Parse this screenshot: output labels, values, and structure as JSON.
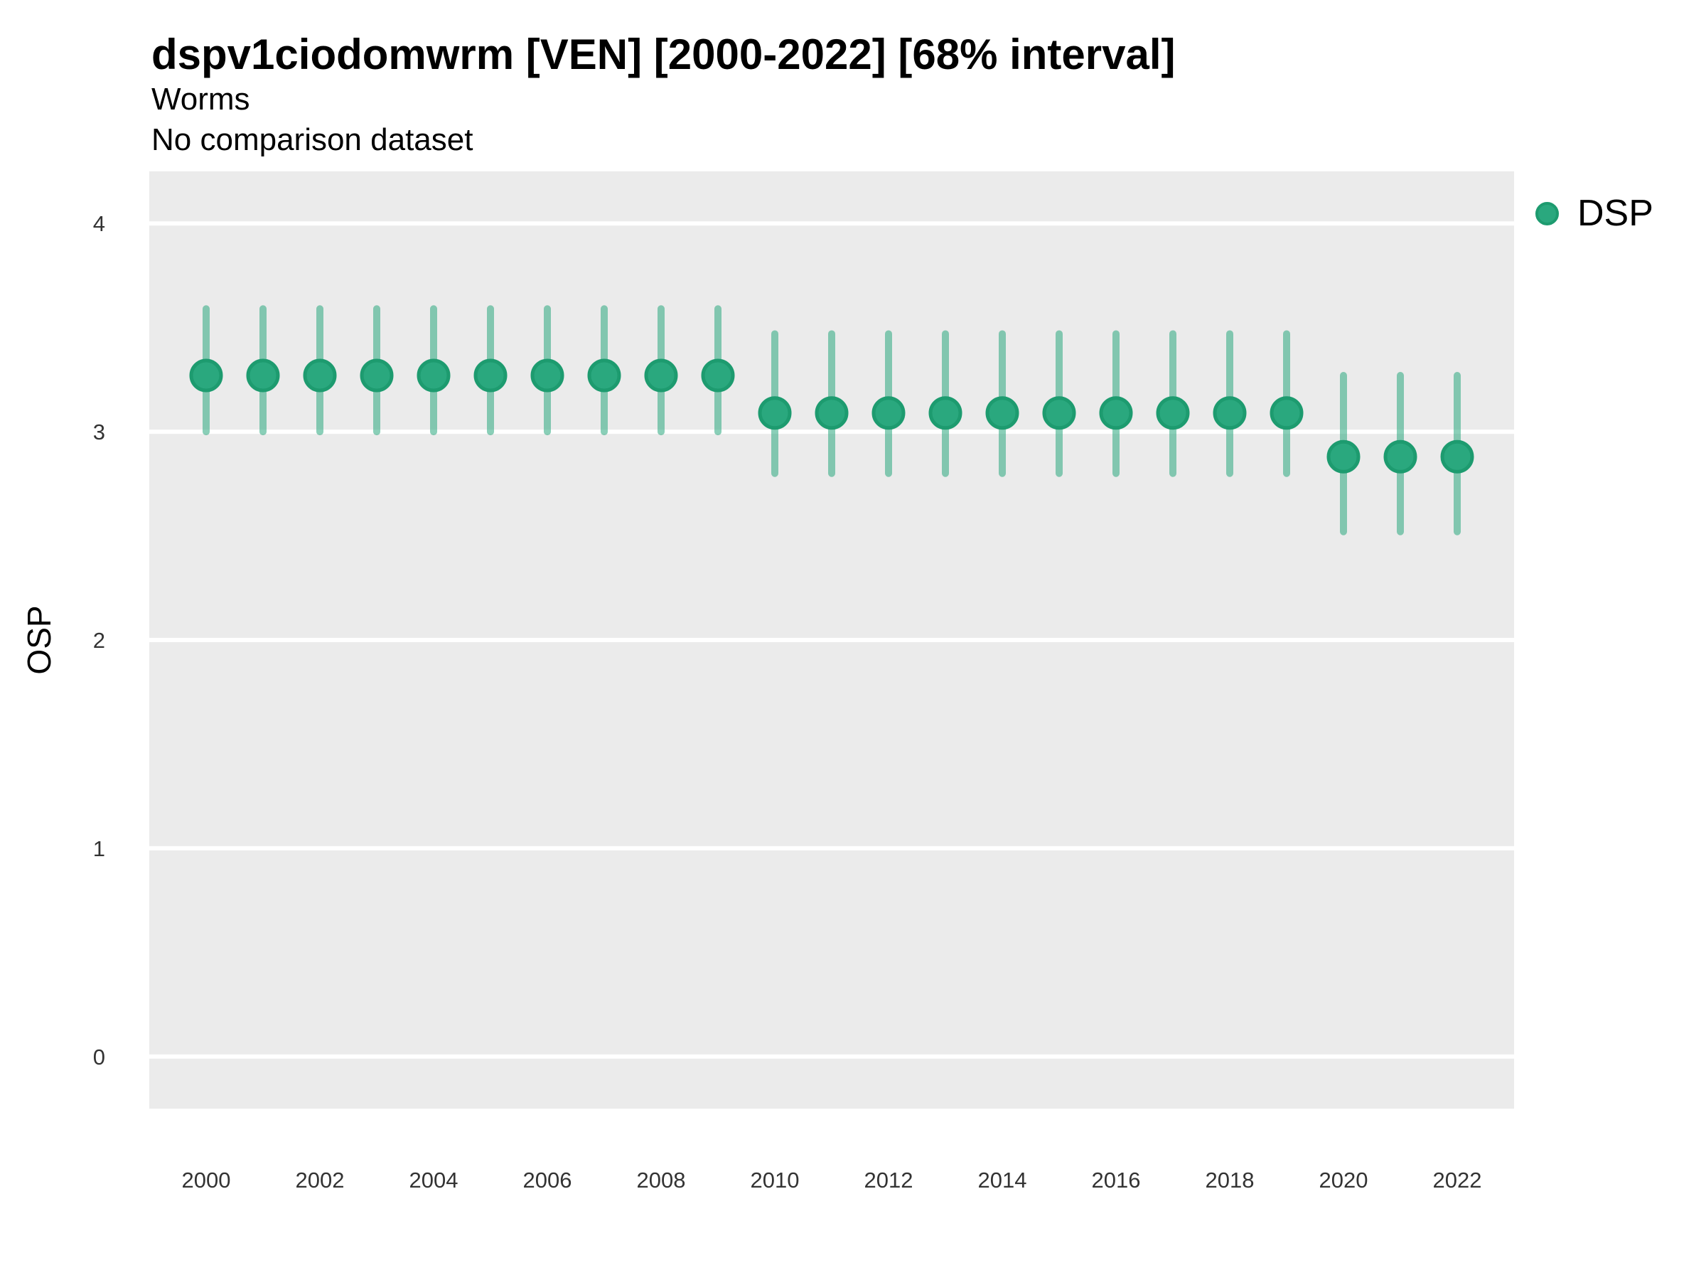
{
  "header": {
    "title": "dspv1ciodomwrm [VEN] [2000-2022] [68% interval]",
    "subtitle": "Worms",
    "comparison_note": "No comparison dataset"
  },
  "colors": {
    "point_fill": "#2AA87E",
    "point_stroke": "#1D9B6F",
    "interval_line": "#2AA87E",
    "interval_opacity": 0.55,
    "panel_background": "#EBEBEB",
    "gridline": "#FFFFFF",
    "axis_text": "#333333",
    "title_text": "#000000"
  },
  "chart_data": {
    "type": "scatter",
    "variant": "pointrange",
    "title": "dspv1ciodomwrm [VEN] [2000-2022] [68% interval]",
    "subtitle": "Worms",
    "note": "No comparison dataset",
    "xlabel": "",
    "ylabel": "OSP",
    "interval_level": "68%",
    "grid": "major-horizontal-only",
    "legend_position": "right",
    "xlim": [
      1999,
      2023
    ],
    "ylim": [
      -0.25,
      4.25
    ],
    "x_ticks": [
      2000,
      2002,
      2004,
      2006,
      2008,
      2010,
      2012,
      2014,
      2016,
      2018,
      2020,
      2022
    ],
    "y_ticks": [
      0,
      1,
      2,
      3,
      4
    ],
    "series": [
      {
        "name": "DSP",
        "x": [
          2000,
          2001,
          2002,
          2003,
          2004,
          2005,
          2006,
          2007,
          2008,
          2009,
          2010,
          2011,
          2012,
          2013,
          2014,
          2015,
          2016,
          2017,
          2018,
          2019,
          2020,
          2021,
          2022
        ],
        "mid": [
          3.27,
          3.27,
          3.27,
          3.27,
          3.27,
          3.27,
          3.27,
          3.27,
          3.27,
          3.27,
          3.09,
          3.09,
          3.09,
          3.09,
          3.09,
          3.09,
          3.09,
          3.09,
          3.09,
          3.09,
          2.88,
          2.88,
          2.88
        ],
        "lo": [
          3.0,
          3.0,
          3.0,
          3.0,
          3.0,
          3.0,
          3.0,
          3.0,
          3.0,
          3.0,
          2.8,
          2.8,
          2.8,
          2.8,
          2.8,
          2.8,
          2.8,
          2.8,
          2.8,
          2.8,
          2.52,
          2.52,
          2.52
        ],
        "hi": [
          3.59,
          3.59,
          3.59,
          3.59,
          3.59,
          3.59,
          3.59,
          3.59,
          3.59,
          3.59,
          3.47,
          3.47,
          3.47,
          3.47,
          3.47,
          3.47,
          3.47,
          3.47,
          3.47,
          3.47,
          3.27,
          3.27,
          3.27
        ]
      }
    ]
  }
}
